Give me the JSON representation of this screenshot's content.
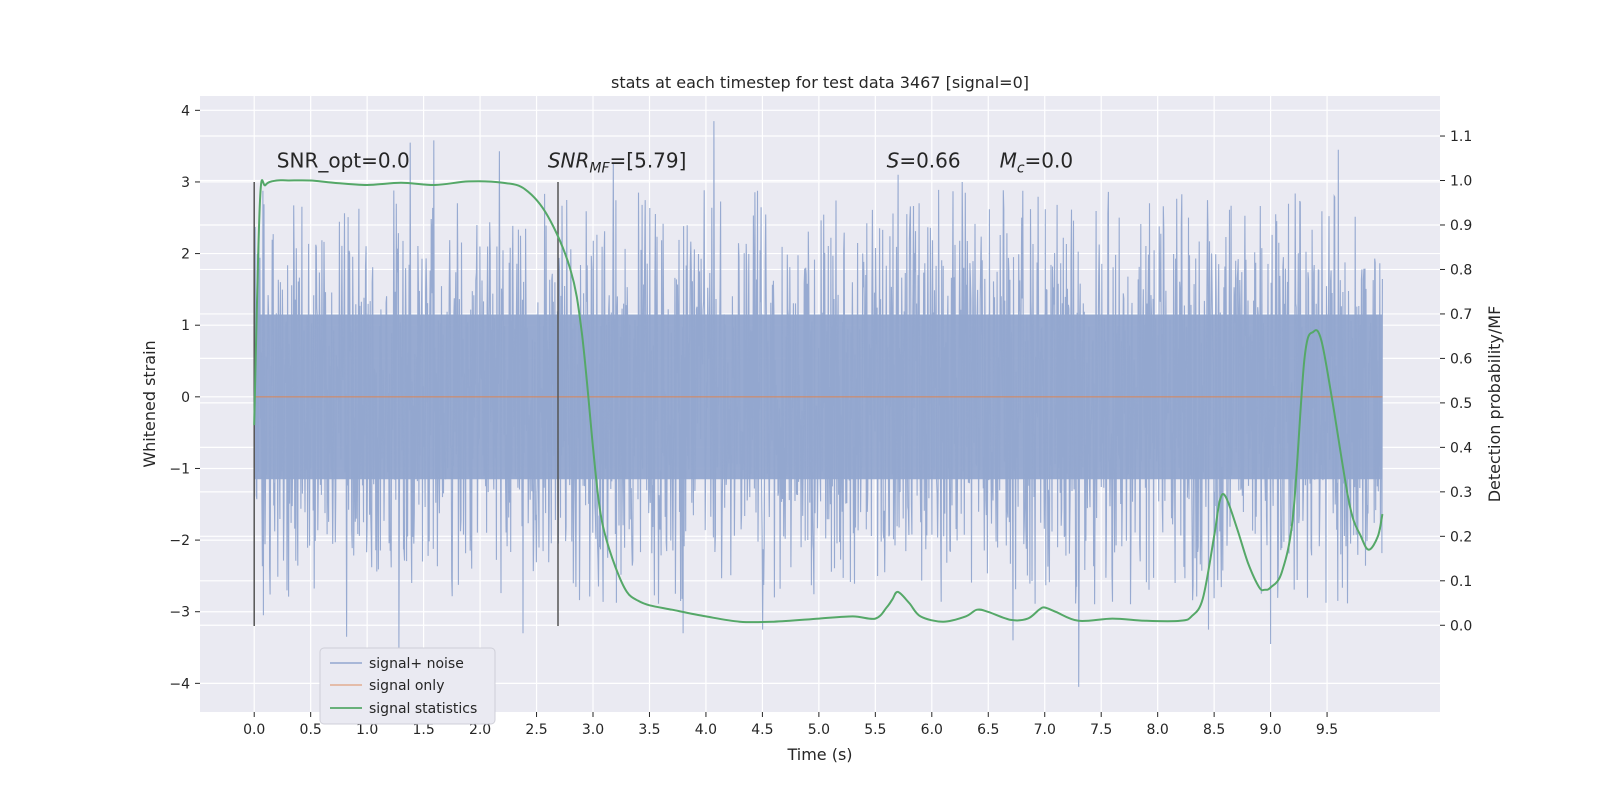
{
  "chart_data": {
    "type": "line",
    "title": "stats at each timestep for test data 3467 [signal=0]",
    "xlabel": "Time (s)",
    "ylabel": "Whitened strain",
    "y2label": "Detection probability/MF",
    "xlim": [
      -0.48,
      10.5
    ],
    "ylim": [
      -4.4,
      4.2
    ],
    "y2lim": [
      -0.195,
      1.19
    ],
    "grid": true,
    "legend_placement": "lower-left",
    "x_ticks": [
      0.0,
      0.5,
      1.0,
      1.5,
      2.0,
      2.5,
      3.0,
      3.5,
      4.0,
      4.5,
      5.0,
      5.5,
      6.0,
      6.5,
      7.0,
      7.5,
      8.0,
      8.5,
      9.0,
      9.5
    ],
    "x_tick_labels": [
      "0.0",
      "0.5",
      "1.0",
      "1.5",
      "2.0",
      "2.5",
      "3.0",
      "3.5",
      "4.0",
      "4.5",
      "5.0",
      "5.5",
      "6.0",
      "6.5",
      "7.0",
      "7.5",
      "8.0",
      "8.5",
      "9.0",
      "9.5"
    ],
    "y_ticks": [
      -4,
      -3,
      -2,
      -1,
      0,
      1,
      2,
      3,
      4
    ],
    "y_tick_labels": [
      "−4",
      "−3",
      "−2",
      "−1",
      "0",
      "1",
      "2",
      "3",
      "4"
    ],
    "y2_ticks": [
      0.0,
      0.1,
      0.2,
      0.3,
      0.4,
      0.5,
      0.6,
      0.7,
      0.8,
      0.9,
      1.0,
      1.1
    ],
    "y2_tick_labels": [
      "0.0",
      "0.1",
      "0.2",
      "0.3",
      "0.4",
      "0.5",
      "0.6",
      "0.7",
      "0.8",
      "0.9",
      "1.0",
      "1.1"
    ],
    "vlines": [
      {
        "x": 0.0,
        "ymin": -3.2,
        "ymax": 3.0
      },
      {
        "x": 2.69,
        "ymin": -3.2,
        "ymax": 3.0
      }
    ],
    "annotations": [
      {
        "id": "snr-opt",
        "text": "SNR_opt=0.0",
        "x": 0.2,
        "y": 3.2
      },
      {
        "id": "snr-mf",
        "text": "SNR",
        "sub": "MF",
        "suffix": "=[5.79]",
        "x": 2.6,
        "y": 3.2
      },
      {
        "id": "s-stat",
        "text": "S",
        "suffix": "=0.66",
        "x": 5.6,
        "y": 3.2
      },
      {
        "id": "mc",
        "text": "M",
        "sub": "c",
        "suffix": "=0.0",
        "x": 6.6,
        "y": 3.2
      }
    ],
    "series": [
      {
        "name": "signal+ noise",
        "axis": "left",
        "color": "#92a6cf",
        "kind": "noise",
        "x_range": [
          0.0,
          9.99
        ],
        "core_amplitude": 1.15,
        "typical_extreme": 2.2,
        "peaks": [
          {
            "x": 0.08,
            "y": -3.05
          },
          {
            "x": 0.82,
            "y": -3.35
          },
          {
            "x": 1.38,
            "y": 3.55
          },
          {
            "x": 1.28,
            "y": -3.5
          },
          {
            "x": 1.59,
            "y": 3.58
          },
          {
            "x": 2.17,
            "y": 3.43
          },
          {
            "x": 2.38,
            "y": -3.3
          },
          {
            "x": 4.07,
            "y": 3.85
          },
          {
            "x": 3.8,
            "y": -3.3
          },
          {
            "x": 4.5,
            "y": -3.25
          },
          {
            "x": 6.72,
            "y": -3.4
          },
          {
            "x": 7.3,
            "y": -4.05
          },
          {
            "x": 8.45,
            "y": -3.25
          },
          {
            "x": 9.0,
            "y": -3.45
          },
          {
            "x": 9.6,
            "y": 3.45
          },
          {
            "x": 5.7,
            "y": 3.1
          },
          {
            "x": 6.27,
            "y": 3.0
          },
          {
            "x": 3.18,
            "y": 3.25
          }
        ]
      },
      {
        "name": "signal only",
        "axis": "left",
        "color": "#dd8452",
        "x": [
          0.0,
          9.99
        ],
        "y": [
          0.0,
          0.0
        ]
      },
      {
        "name": "signal statistics",
        "axis": "right",
        "color": "#55a868",
        "x": [
          0.0,
          0.05,
          0.1,
          0.2,
          0.3,
          0.5,
          0.7,
          1.0,
          1.3,
          1.6,
          1.9,
          2.2,
          2.4,
          2.6,
          2.8,
          2.9,
          3.0,
          3.05,
          3.1,
          3.2,
          3.3,
          3.4,
          3.5,
          3.7,
          4.0,
          4.3,
          4.6,
          5.0,
          5.3,
          5.5,
          5.6,
          5.65,
          5.7,
          5.8,
          5.9,
          6.1,
          6.3,
          6.4,
          6.5,
          6.7,
          6.85,
          6.95,
          7.0,
          7.1,
          7.3,
          7.6,
          7.9,
          8.2,
          8.3,
          8.4,
          8.5,
          8.55,
          8.6,
          8.7,
          8.8,
          8.9,
          8.95,
          9.0,
          9.1,
          9.2,
          9.3,
          9.38,
          9.45,
          9.55,
          9.7,
          9.8,
          9.87,
          9.95,
          9.99
        ],
        "y": [
          0.45,
          0.95,
          0.99,
          1.0,
          1.0,
          1.0,
          0.995,
          0.99,
          0.995,
          0.99,
          0.998,
          0.995,
          0.98,
          0.92,
          0.8,
          0.66,
          0.4,
          0.28,
          0.21,
          0.13,
          0.075,
          0.055,
          0.045,
          0.035,
          0.02,
          0.008,
          0.008,
          0.015,
          0.02,
          0.015,
          0.04,
          0.058,
          0.075,
          0.05,
          0.02,
          0.008,
          0.02,
          0.035,
          0.03,
          0.012,
          0.015,
          0.035,
          0.04,
          0.03,
          0.01,
          0.015,
          0.01,
          0.01,
          0.02,
          0.06,
          0.2,
          0.28,
          0.29,
          0.22,
          0.14,
          0.085,
          0.08,
          0.085,
          0.12,
          0.25,
          0.6,
          0.66,
          0.64,
          0.5,
          0.27,
          0.2,
          0.17,
          0.2,
          0.25
        ]
      }
    ]
  }
}
